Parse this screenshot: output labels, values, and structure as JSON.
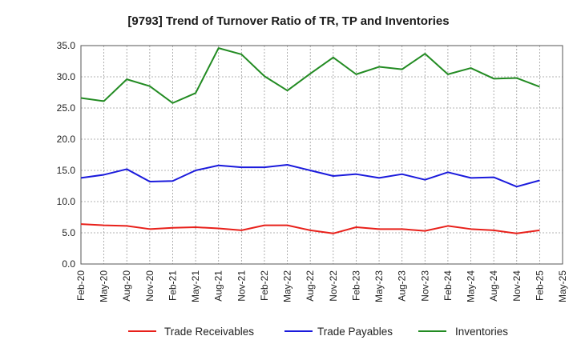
{
  "chart_data": {
    "type": "line",
    "title": "[9793]  Trend of Turnover Ratio of TR, TP and Inventories",
    "xlabel": "",
    "ylabel": "",
    "ylim": [
      0,
      35
    ],
    "yticks": [
      "0.0",
      "5.0",
      "10.0",
      "15.0",
      "20.0",
      "25.0",
      "30.0",
      "35.0"
    ],
    "grid": true,
    "legend_position": "bottom",
    "x_tick_labels": [
      "Feb-20",
      "May-20",
      "Aug-20",
      "Nov-20",
      "Feb-21",
      "May-21",
      "Aug-21",
      "Nov-21",
      "Feb-22",
      "May-22",
      "Aug-22",
      "Nov-22",
      "Feb-23",
      "May-23",
      "Aug-23",
      "Nov-23",
      "Feb-24",
      "May-24",
      "Aug-24",
      "Nov-24",
      "Feb-25",
      "May-25"
    ],
    "x": [
      "Feb-20",
      "May-20",
      "Aug-20",
      "Nov-20",
      "Feb-21",
      "May-21",
      "Aug-21",
      "Nov-21",
      "Feb-22",
      "May-22",
      "Aug-22",
      "Nov-22",
      "Feb-23",
      "May-23",
      "Aug-23",
      "Nov-23",
      "Feb-24",
      "May-24",
      "Aug-24",
      "Nov-24",
      "Feb-25"
    ],
    "series": [
      {
        "name": "Trade Receivables",
        "color": "#e8201a",
        "values": [
          6.4,
          6.2,
          6.1,
          5.6,
          5.8,
          5.9,
          5.7,
          5.4,
          6.2,
          6.2,
          5.4,
          4.9,
          5.9,
          5.6,
          5.6,
          5.3,
          6.1,
          5.6,
          5.4,
          4.9,
          5.4
        ]
      },
      {
        "name": "Trade Payables",
        "color": "#1a1adc",
        "values": [
          13.8,
          14.3,
          15.2,
          13.2,
          13.3,
          15.0,
          15.8,
          15.5,
          15.5,
          15.9,
          15.0,
          14.1,
          14.4,
          13.8,
          14.4,
          13.5,
          14.7,
          13.8,
          13.9,
          12.4,
          13.4
        ]
      },
      {
        "name": "Inventories",
        "color": "#228b22",
        "values": [
          26.6,
          26.1,
          29.6,
          28.5,
          25.8,
          27.4,
          34.6,
          33.6,
          30.1,
          27.8,
          30.5,
          33.1,
          30.4,
          31.6,
          31.2,
          33.7,
          30.4,
          31.4,
          29.7,
          29.8,
          28.4
        ]
      }
    ]
  }
}
